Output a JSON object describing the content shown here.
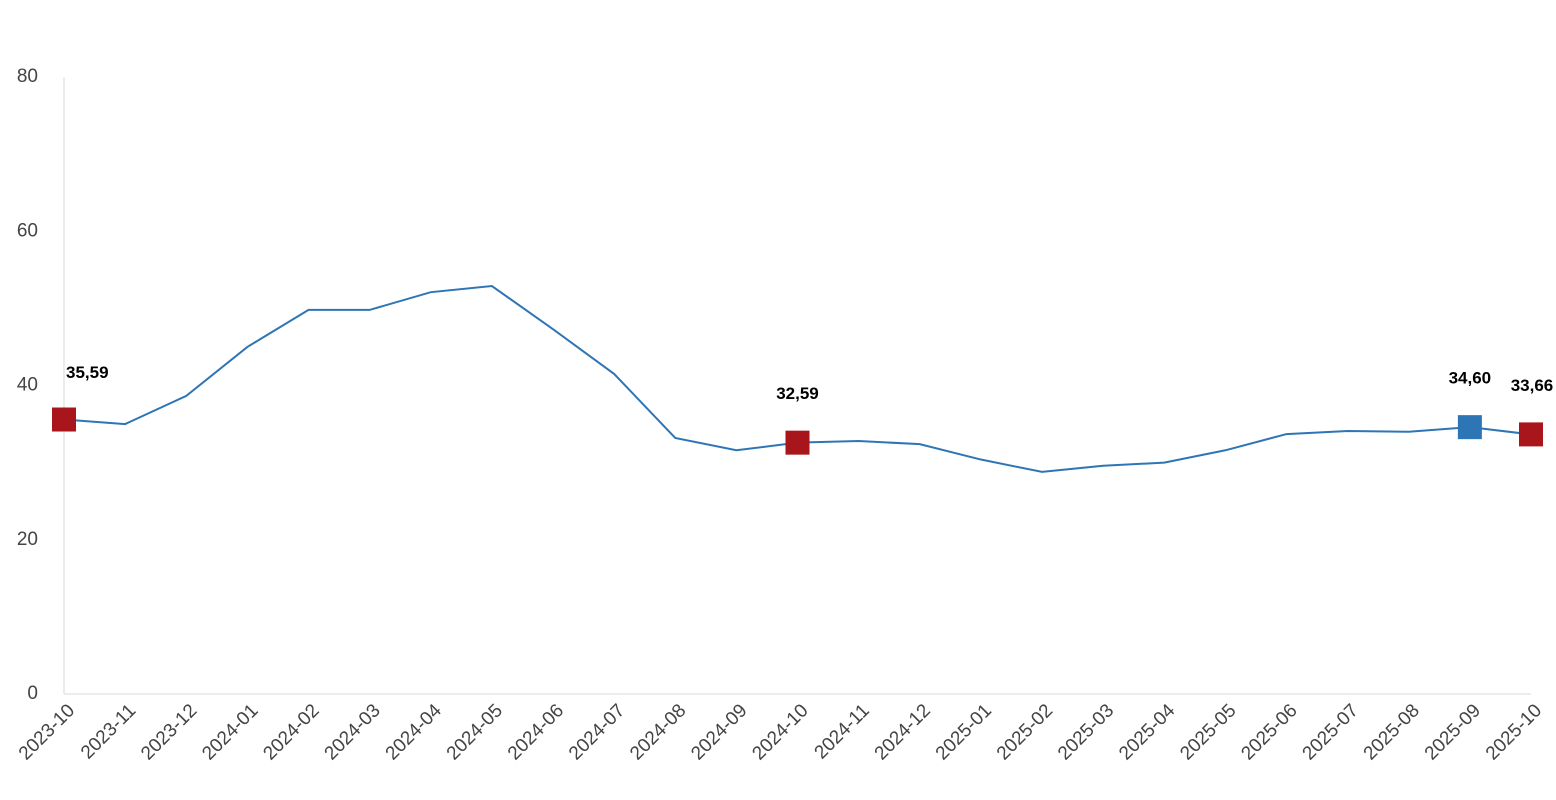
{
  "chart_data": {
    "type": "line",
    "categories": [
      "2023-10",
      "2023-11",
      "2023-12",
      "2024-01",
      "2024-02",
      "2024-03",
      "2024-04",
      "2024-05",
      "2024-06",
      "2024-07",
      "2024-08",
      "2024-09",
      "2024-10",
      "2024-11",
      "2024-12",
      "2025-01",
      "2025-02",
      "2025-03",
      "2025-04",
      "2025-05",
      "2025-06",
      "2025-07",
      "2025-08",
      "2025-09",
      "2025-10"
    ],
    "series": [
      {
        "color": "#2e75b6",
        "values": [
          35.59,
          35.0,
          38.65,
          45.0,
          49.8,
          49.8,
          52.1,
          52.9,
          47.3,
          41.5,
          33.2,
          31.6,
          32.59,
          32.8,
          32.4,
          30.4,
          28.8,
          29.6,
          30.0,
          31.6,
          33.7,
          34.1,
          34.0,
          34.6,
          33.66
        ],
        "value_labels": [
          "35,59",
          null,
          null,
          null,
          null,
          null,
          null,
          null,
          null,
          null,
          null,
          null,
          "32,59",
          null,
          null,
          null,
          null,
          null,
          null,
          null,
          null,
          null,
          null,
          "34,60",
          "33,66"
        ],
        "marker_colors": [
          "#a8151b",
          null,
          null,
          null,
          null,
          null,
          null,
          null,
          null,
          null,
          null,
          null,
          "#a8151b",
          null,
          null,
          null,
          null,
          null,
          null,
          null,
          null,
          null,
          null,
          "#2e75b6",
          "#a8151b"
        ]
      }
    ],
    "ylim": [
      0,
      80
    ],
    "yticks": [
      0,
      20,
      40,
      60,
      80
    ],
    "grid": false
  }
}
